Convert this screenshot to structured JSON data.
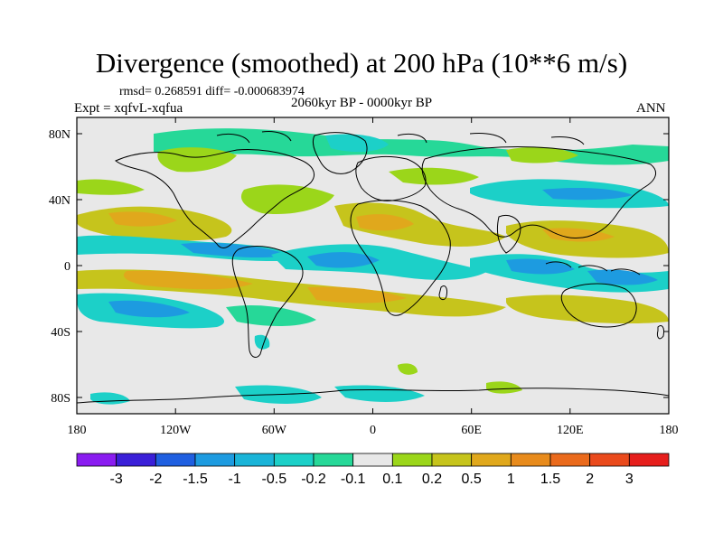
{
  "title": "Divergence (smoothed) at 200 hPa (10**6 m/s)",
  "stats": "rmsd= 0.268591 diff= -0.000683974",
  "experiment": "Expt = xqfvL-xqfua",
  "period": "2060kyr BP - 0000kyr BP",
  "season": "ANN",
  "lat_labels": [
    "80N",
    "40N",
    "0",
    "40S",
    "80S"
  ],
  "lon_labels": [
    "180",
    "120W",
    "60W",
    "0",
    "60E",
    "120E",
    "180"
  ],
  "colorbar": {
    "labels": [
      "-3",
      "-2",
      "-1.5",
      "-1",
      "-0.5",
      "-0.2",
      "-0.1",
      "0.1",
      "0.2",
      "0.5",
      "1",
      "1.5",
      "2",
      "3"
    ],
    "colors": [
      "#8a1cf0",
      "#3a1fd8",
      "#1f5fe0",
      "#1d9be0",
      "#1ab4d8",
      "#1cd0c8",
      "#26d898",
      "#e8e8e8",
      "#9bd61a",
      "#c6c41c",
      "#e0a81c",
      "#e88b1c",
      "#ea6a1c",
      "#ea4a1c",
      "#e61e1c"
    ]
  },
  "colors": {
    "land_bg": "#e8e8e8",
    "coast": "#000000"
  }
}
